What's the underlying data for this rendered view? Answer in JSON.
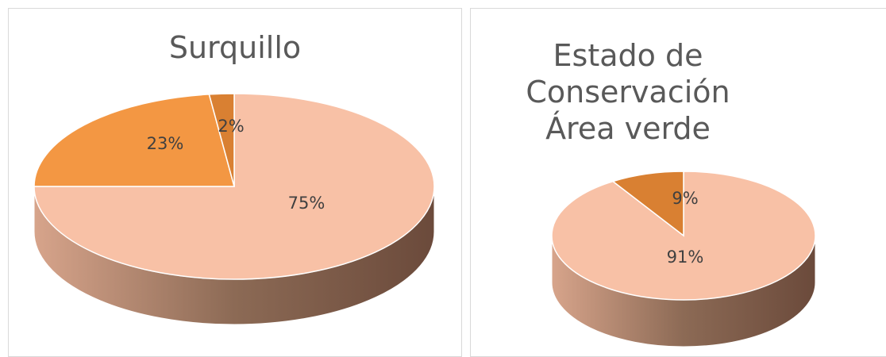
{
  "chart_data": [
    {
      "type": "pie",
      "title": "Surquillo",
      "values": [
        75,
        23,
        2
      ],
      "labels": [
        "75%",
        "23%",
        "2%"
      ],
      "colors": [
        "#f8c1a6",
        "#f39743",
        "#d98032"
      ],
      "side_colors": [
        "#8c6a55",
        "#6b4a3b"
      ]
    },
    {
      "type": "pie",
      "title": [
        "Estado de",
        "Conservación",
        "Área verde"
      ],
      "values": [
        91,
        9
      ],
      "labels": [
        "91%",
        "9%"
      ],
      "colors": [
        "#f8c1a6",
        "#d98032"
      ],
      "side_colors": [
        "#8c6a55",
        "#6b4a3b"
      ]
    }
  ]
}
